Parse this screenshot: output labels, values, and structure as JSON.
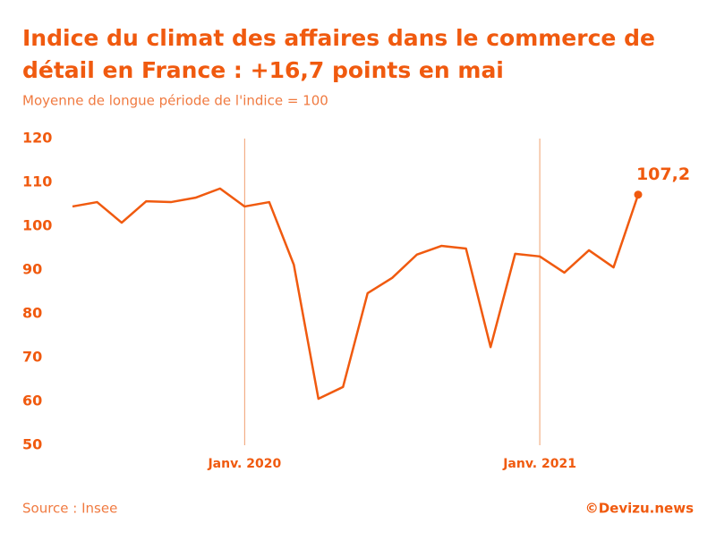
{
  "chart_data": {
    "type": "line",
    "title": "Indice du climat des affaires dans le commerce de détail en France : +16,7 points en mai",
    "title_lines": [
      "Indice du climat des affaires dans le commerce de",
      "détail en France : +16,7 points en mai"
    ],
    "subtitle": "Moyenne de longue période de l'indice = 100",
    "source": "Source : Insee",
    "credit": "©Devizu.news",
    "categories": [
      null,
      null,
      null,
      null,
      null,
      null,
      null,
      "Janv. 2020",
      null,
      null,
      null,
      null,
      null,
      null,
      null,
      null,
      null,
      null,
      null,
      "Janv. 2021",
      null,
      null,
      null,
      null
    ],
    "series": [
      {
        "name": "Indice",
        "color": "#f05a0f",
        "values": [
          104.5,
          105.5,
          100.8,
          105.7,
          105.5,
          106.5,
          108.6,
          104.5,
          105.5,
          91.2,
          60.6,
          63.3,
          84.7,
          88.2,
          93.5,
          95.5,
          94.9,
          72.4,
          93.7,
          93.1,
          89.4,
          94.5,
          90.6,
          107.2
        ],
        "value_labels": [
          null,
          null,
          null,
          null,
          null,
          null,
          null,
          null,
          null,
          null,
          null,
          null,
          null,
          null,
          null,
          null,
          null,
          null,
          null,
          null,
          null,
          null,
          null,
          "107,2"
        ]
      }
    ],
    "ylim": [
      50,
      120
    ],
    "yticks": [
      50,
      60,
      70,
      80,
      90,
      100,
      110,
      120
    ],
    "grid": false
  }
}
